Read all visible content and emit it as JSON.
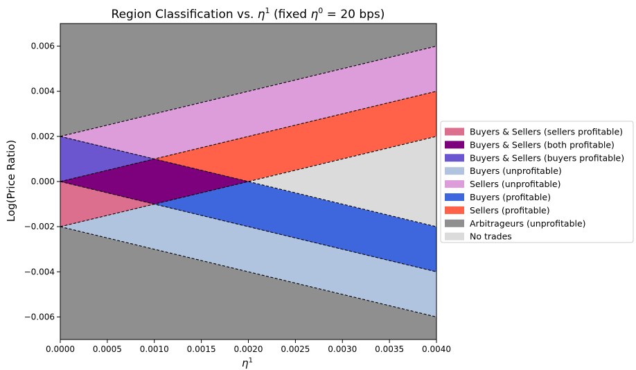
{
  "chart_data": {
    "type": "area",
    "title_main": "Region Classification vs. ",
    "title_sym": "η",
    "title_sup": "1",
    "title_mid": "  (fixed ",
    "title_sym2": "η",
    "title_sup2": "0",
    "title_end": " = 20 bps)",
    "xlabel_sym": "η",
    "xlabel_sup": "1",
    "ylabel": "Log(Price Ratio)",
    "xlim": [
      0,
      0.004
    ],
    "ylim": [
      -0.007,
      0.007
    ],
    "x_ticks": [
      "0.0000",
      "0.0005",
      "0.0010",
      "0.0015",
      "0.0020",
      "0.0025",
      "0.0030",
      "0.0035",
      "0.0040"
    ],
    "x_tick_values": [
      0,
      0.0005,
      0.001,
      0.0015,
      0.002,
      0.0025,
      0.003,
      0.0035,
      0.004
    ],
    "y_ticks": [
      "−0.006",
      "−0.004",
      "−0.002",
      "0.000",
      "0.002",
      "0.004",
      "0.006"
    ],
    "y_tick_values": [
      -0.006,
      -0.004,
      -0.002,
      0,
      0.002,
      0.004,
      0.006
    ],
    "background_color": "#8f8f8f",
    "regions": [
      {
        "name": "Arbitrageurs (unprofitable)",
        "color": "#8f8f8f",
        "polygon": [
          [
            0,
            0.007
          ],
          [
            0.004,
            0.007
          ],
          [
            0.004,
            0.006
          ],
          [
            0,
            0.002
          ]
        ]
      },
      {
        "name": "Arbitrageurs (unprofitable)",
        "color": "#8f8f8f",
        "polygon": [
          [
            0,
            -0.007
          ],
          [
            0.004,
            -0.007
          ],
          [
            0.004,
            -0.006
          ],
          [
            0,
            -0.002
          ]
        ]
      },
      {
        "name": "Sellers (unprofitable)",
        "color": "#dd9ddb",
        "polygon": [
          [
            0,
            0.002
          ],
          [
            0.004,
            0.006
          ],
          [
            0.004,
            0.004
          ],
          [
            0.001,
            0.001
          ]
        ]
      },
      {
        "name": "Buyers (unprofitable)",
        "color": "#b1c4df",
        "polygon": [
          [
            0,
            -0.002
          ],
          [
            0.004,
            -0.006
          ],
          [
            0.004,
            -0.004
          ],
          [
            0.001,
            -0.001
          ]
        ]
      },
      {
        "name": "Sellers (profitable)",
        "color": "#ff6249",
        "polygon": [
          [
            0.001,
            0.001
          ],
          [
            0.004,
            0.004
          ],
          [
            0.004,
            0.002
          ],
          [
            0.002,
            0
          ]
        ]
      },
      {
        "name": "Buyers (profitable)",
        "color": "#3e67dd",
        "polygon": [
          [
            0.001,
            -0.001
          ],
          [
            0.004,
            -0.004
          ],
          [
            0.004,
            -0.002
          ],
          [
            0.002,
            0
          ]
        ]
      },
      {
        "name": "No trades",
        "color": "#dbdbdb",
        "polygon": [
          [
            0.002,
            0
          ],
          [
            0.004,
            0.002
          ],
          [
            0.004,
            -0.002
          ]
        ]
      },
      {
        "name": "Buyers & Sellers (buyers profitable)",
        "color": "#6b56d0",
        "polygon": [
          [
            0,
            0.002
          ],
          [
            0.001,
            0.001
          ],
          [
            0,
            0
          ]
        ]
      },
      {
        "name": "Buyers & Sellers (sellers profitable)",
        "color": "#dd6f8e",
        "polygon": [
          [
            0,
            0
          ],
          [
            0.001,
            -0.001
          ],
          [
            0,
            -0.002
          ]
        ]
      },
      {
        "name": "Buyers & Sellers (both profitable)",
        "color": "#7d007d",
        "polygon": [
          [
            0,
            0
          ],
          [
            0.001,
            0.001
          ],
          [
            0.002,
            0
          ],
          [
            0.001,
            -0.001
          ]
        ]
      }
    ],
    "boundary_lines": [
      {
        "from": [
          0,
          0.002
        ],
        "to": [
          0.004,
          0.006
        ]
      },
      {
        "from": [
          0,
          0.002
        ],
        "to": [
          0.004,
          -0.002
        ]
      },
      {
        "from": [
          0,
          0
        ],
        "to": [
          0.004,
          0.004
        ]
      },
      {
        "from": [
          0,
          0
        ],
        "to": [
          0.004,
          -0.004
        ]
      },
      {
        "from": [
          0,
          -0.002
        ],
        "to": [
          0.004,
          0.002
        ]
      },
      {
        "from": [
          0,
          -0.002
        ],
        "to": [
          0.004,
          -0.006
        ]
      }
    ],
    "legend_position": "right",
    "legend": [
      {
        "label": "Buyers & Sellers (sellers profitable)",
        "color": "#dd6f8e"
      },
      {
        "label": "Buyers & Sellers (both profitable)",
        "color": "#7d007d"
      },
      {
        "label": "Buyers & Sellers (buyers profitable)",
        "color": "#6b56d0"
      },
      {
        "label": "Buyers (unprofitable)",
        "color": "#b1c4df"
      },
      {
        "label": "Sellers (unprofitable)",
        "color": "#dd9ddb"
      },
      {
        "label": "Buyers (profitable)",
        "color": "#3e67dd"
      },
      {
        "label": "Sellers (profitable)",
        "color": "#ff6249"
      },
      {
        "label": "Arbitrageurs (unprofitable)",
        "color": "#8f8f8f"
      },
      {
        "label": "No trades",
        "color": "#dbdbdb"
      }
    ]
  }
}
